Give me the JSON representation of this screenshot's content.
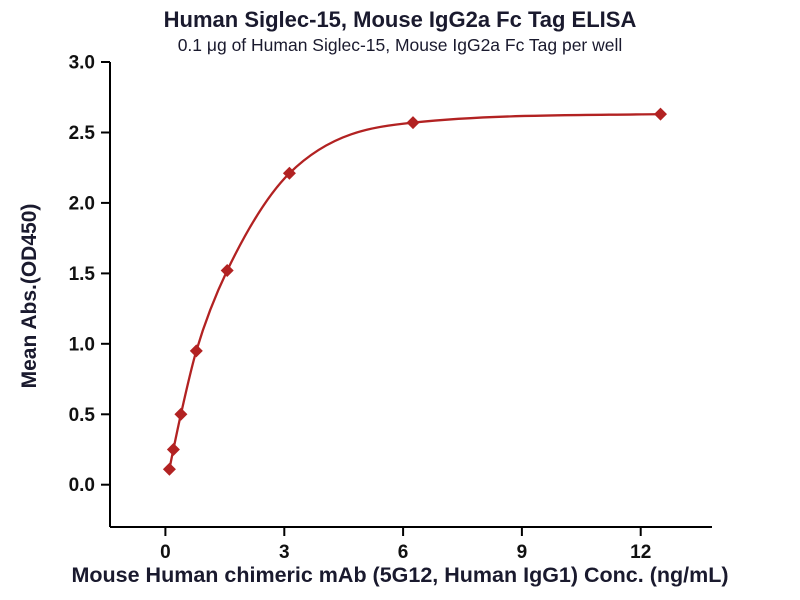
{
  "chart_data": {
    "type": "scatter",
    "title": "Human Siglec-15, Mouse IgG2a Fc Tag ELISA",
    "subtitle": "0.1 μg of Human Siglec-15, Mouse IgG2a Fc Tag per well",
    "xlabel": "Mouse Human chimeric mAb (5G12, Human IgG1) Conc. (ng/mL)",
    "ylabel": "Mean Abs.(OD450)",
    "xlim": [
      -1.4,
      13.8
    ],
    "ylim": [
      -0.3,
      3.0
    ],
    "x_ticks": [
      0,
      3,
      6,
      9,
      12
    ],
    "x_tick_labels": [
      "0",
      "3",
      "6",
      "9",
      "12"
    ],
    "y_ticks": [
      0,
      0.5,
      1,
      1.5,
      2,
      2.5,
      3
    ],
    "y_tick_labels": [
      "0.0",
      "0.5",
      "1.0",
      "1.5",
      "2.0",
      "2.5",
      "3.0"
    ],
    "grid": false,
    "legend": "none",
    "series": [
      {
        "color": "#b22222",
        "marker": "diamond",
        "curve": "smooth-fit",
        "x": [
          0.1,
          0.2,
          0.39,
          0.78,
          1.56,
          3.13,
          6.25,
          12.5
        ],
        "y": [
          0.11,
          0.25,
          0.5,
          0.95,
          1.52,
          2.21,
          2.57,
          2.63
        ]
      }
    ]
  },
  "style": {
    "background": "#ffffff",
    "text_color": "#1a1a2e",
    "axis_color": "#000000",
    "tick_label_color": "#111111",
    "accent_color": "#b22222"
  }
}
